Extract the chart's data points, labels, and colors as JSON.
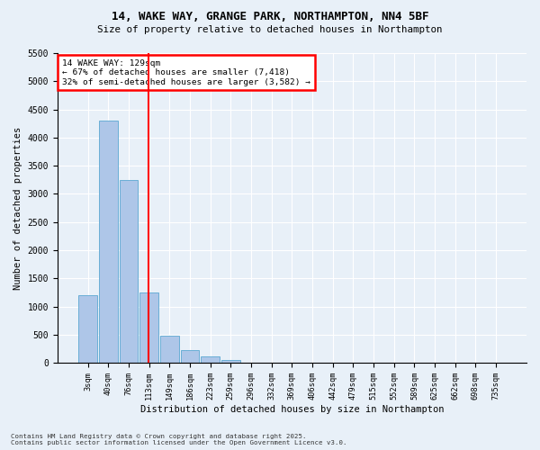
{
  "title": "14, WAKE WAY, GRANGE PARK, NORTHAMPTON, NN4 5BF",
  "subtitle": "Size of property relative to detached houses in Northampton",
  "xlabel": "Distribution of detached houses by size in Northampton",
  "ylabel": "Number of detached properties",
  "bin_labels": [
    "3sqm",
    "40sqm",
    "76sqm",
    "113sqm",
    "149sqm",
    "186sqm",
    "223sqm",
    "259sqm",
    "296sqm",
    "332sqm",
    "369sqm",
    "406sqm",
    "442sqm",
    "479sqm",
    "515sqm",
    "552sqm",
    "589sqm",
    "625sqm",
    "662sqm",
    "698sqm",
    "735sqm"
  ],
  "bar_values": [
    1200,
    4300,
    3250,
    1250,
    490,
    230,
    110,
    50,
    0,
    0,
    0,
    0,
    0,
    0,
    0,
    0,
    0,
    0,
    0,
    0,
    0
  ],
  "bar_color": "#aec6e8",
  "bar_edge_color": "#6aaed6",
  "vline_color": "red",
  "vline_pos": 2.95,
  "annotation_title": "14 WAKE WAY: 129sqm",
  "annotation_line1": "← 67% of detached houses are smaller (7,418)",
  "annotation_line2": "32% of semi-detached houses are larger (3,582) →",
  "annotation_box_edgecolor": "red",
  "ylim": [
    0,
    5500
  ],
  "yticks": [
    0,
    500,
    1000,
    1500,
    2000,
    2500,
    3000,
    3500,
    4000,
    4500,
    5000,
    5500
  ],
  "footer_line1": "Contains HM Land Registry data © Crown copyright and database right 2025.",
  "footer_line2": "Contains public sector information licensed under the Open Government Licence v3.0.",
  "bg_color": "#e8f0f8"
}
